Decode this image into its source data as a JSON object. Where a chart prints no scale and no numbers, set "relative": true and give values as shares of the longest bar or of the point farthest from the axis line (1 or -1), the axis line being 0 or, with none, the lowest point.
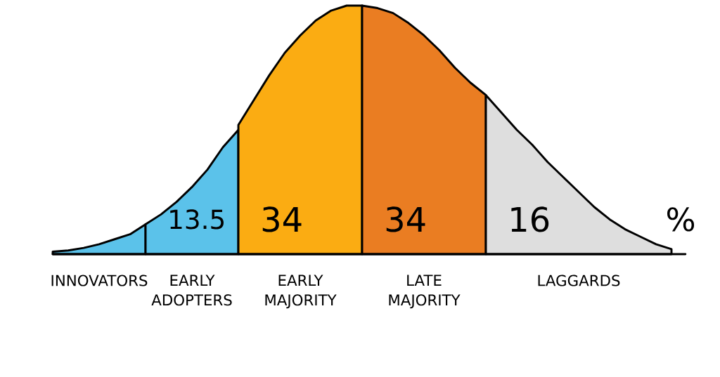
{
  "chart_data": {
    "type": "area",
    "relative": true,
    "categories": [
      null,
      null,
      null,
      null,
      null,
      null,
      null,
      null,
      null,
      null,
      null,
      null,
      null,
      null,
      null,
      null,
      null,
      null,
      null,
      null,
      null,
      null,
      null,
      null,
      null,
      null,
      null,
      null,
      null,
      null,
      null,
      null,
      null,
      null,
      null,
      null,
      null,
      null,
      null,
      null,
      null
    ],
    "series": [
      {
        "name": "INNOVATORS",
        "color": "#5bc2ea",
        "values": [
          0.01,
          0.015,
          0.025,
          0.04,
          0.06,
          0.08,
          0.12,
          null,
          null,
          null,
          null,
          null,
          null,
          null,
          null,
          null,
          null,
          null,
          null,
          null,
          null,
          null,
          null,
          null,
          null,
          null,
          null,
          null,
          null,
          null,
          null,
          null,
          null,
          null,
          null,
          null,
          null,
          null,
          null,
          null,
          null
        ]
      },
      {
        "name": "EARLY ADOPTERS",
        "color": "#5bc2ea",
        "values": [
          null,
          null,
          null,
          null,
          null,
          null,
          0.12,
          0.16,
          0.21,
          0.27,
          0.34,
          0.43,
          0.5,
          null,
          null,
          null,
          null,
          null,
          null,
          null,
          null,
          null,
          null,
          null,
          null,
          null,
          null,
          null,
          null,
          null,
          null,
          null,
          null,
          null,
          null,
          null,
          null,
          null,
          null,
          null,
          null
        ]
      },
      {
        "name": "EARLY MAJORITY",
        "color": "#fbac12",
        "values": [
          null,
          null,
          null,
          null,
          null,
          null,
          null,
          null,
          null,
          null,
          null,
          null,
          0.52,
          0.62,
          0.72,
          0.81,
          0.88,
          0.94,
          0.98,
          1.0,
          1.0,
          null,
          null,
          null,
          null,
          null,
          null,
          null,
          null,
          null,
          null,
          null,
          null,
          null,
          null,
          null,
          null,
          null,
          null,
          null,
          null
        ]
      },
      {
        "name": "LATE MAJORITY",
        "color": "#ea7d22",
        "values": [
          null,
          null,
          null,
          null,
          null,
          null,
          null,
          null,
          null,
          null,
          null,
          null,
          null,
          null,
          null,
          null,
          null,
          null,
          null,
          null,
          1.0,
          0.99,
          0.97,
          0.93,
          0.88,
          0.82,
          0.75,
          0.69,
          0.64,
          null,
          null,
          null,
          null,
          null,
          null,
          null,
          null,
          null,
          null,
          null,
          null
        ]
      },
      {
        "name": "LAGGARDS",
        "color": "#dedede",
        "values": [
          null,
          null,
          null,
          null,
          null,
          null,
          null,
          null,
          null,
          null,
          null,
          null,
          null,
          null,
          null,
          null,
          null,
          null,
          null,
          null,
          null,
          null,
          null,
          null,
          null,
          null,
          null,
          null,
          0.64,
          0.57,
          0.5,
          0.44,
          0.37,
          0.31,
          0.25,
          0.19,
          0.14,
          0.1,
          0.07,
          0.04,
          0.02
        ]
      }
    ],
    "annotations": [
      "13.5",
      "34",
      "34",
      "16",
      "%"
    ]
  }
}
